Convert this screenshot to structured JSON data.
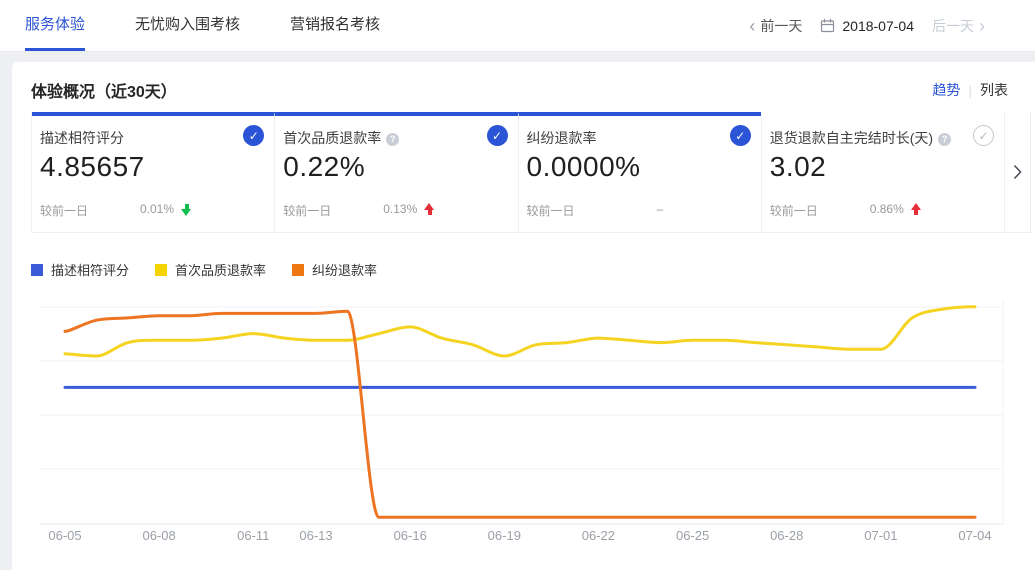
{
  "nav": {
    "tabs": [
      {
        "label": "服务体验",
        "active": true
      },
      {
        "label": "无忧购入围考核",
        "active": false
      },
      {
        "label": "营销报名考核",
        "active": false
      }
    ],
    "date_nav": {
      "prev_label": "前一天",
      "date": "2018-07-04",
      "next_label": "后一天"
    }
  },
  "panel": {
    "title": "体验概况（近30天）",
    "view_switch": {
      "trend": "趋势",
      "divider": "|",
      "list": "列表"
    },
    "cards": [
      {
        "title": "描述相符评分",
        "value": "4.85657",
        "compare_label": "较前一日",
        "change": "0.01%",
        "direction": "down",
        "checked": true
      },
      {
        "title": "首次品质退款率",
        "value": "0.22%",
        "compare_label": "较前一日",
        "change": "0.13%",
        "direction": "up",
        "checked": true
      },
      {
        "title": "纠纷退款率",
        "value": "0.0000%",
        "compare_label": "较前一日",
        "change": "–",
        "direction": "none",
        "checked": true
      },
      {
        "title": "退货退款自主完结时长(天)",
        "value": "3.02",
        "compare_label": "较前一日",
        "change": "0.86%",
        "direction": "up",
        "checked": false
      }
    ]
  },
  "icons": {
    "check": "✓",
    "info": "?",
    "chevron_left": "‹",
    "chevron_right": "›"
  },
  "colors": {
    "accent_blue": "#2b54d6",
    "line_blue": "#3a5cd8",
    "line_yellow": "#f5d321",
    "line_orange": "#ed7420",
    "up_red": "#e62e38",
    "down_green": "#0fbf4d",
    "disabled_text": "#c6ccd6",
    "muted_text": "#999999"
  },
  "chart_data": {
    "type": "line",
    "title": "",
    "xlabel": "",
    "ylabel": "",
    "grid": "horizontal",
    "legend_position": "top-left",
    "y_unit_note": "no y-axis labels shown; values_pct = line height above x-axis as % of plot height",
    "ylim": [
      0,
      100
    ],
    "x": [
      "06-05",
      "06-06",
      "06-07",
      "06-08",
      "06-09",
      "06-10",
      "06-11",
      "06-12",
      "06-13",
      "06-14",
      "06-15",
      "06-16",
      "06-17",
      "06-18",
      "06-19",
      "06-20",
      "06-21",
      "06-22",
      "06-23",
      "06-24",
      "06-25",
      "06-26",
      "06-27",
      "06-28",
      "06-29",
      "06-30",
      "07-01",
      "07-02",
      "07-03",
      "07-04"
    ],
    "tick_indices": [
      0,
      3,
      6,
      8,
      11,
      14,
      17,
      20,
      23,
      26,
      29
    ],
    "series": [
      {
        "key": "desc-score",
        "name": "描述相符评分",
        "color": "#3a5cd8",
        "values_pct": [
          61,
          61,
          61,
          61,
          61,
          61,
          61,
          61,
          61,
          61,
          61,
          61,
          61,
          61,
          61,
          61,
          61,
          61,
          61,
          61,
          61,
          61,
          61,
          61,
          61,
          61,
          61,
          61,
          61,
          61
        ]
      },
      {
        "key": "first-quality-refund",
        "name": "首次品质退款率",
        "color": "#f5d321",
        "values_pct": [
          76,
          75,
          81,
          82,
          82,
          83,
          85,
          83,
          82,
          82,
          85,
          88,
          83,
          80,
          75,
          80,
          81,
          83,
          82,
          81,
          82,
          82,
          81,
          80,
          79,
          78,
          78,
          92,
          96,
          97
        ]
      },
      {
        "key": "dispute-refund",
        "name": "纠纷退款率",
        "color": "#ed7420",
        "values_pct": [
          86,
          91,
          92,
          93,
          93,
          94,
          94,
          94,
          94,
          95,
          3,
          3,
          3,
          3,
          3,
          3,
          3,
          3,
          3,
          3,
          3,
          3,
          3,
          3,
          3,
          3,
          3,
          3,
          3,
          3
        ]
      }
    ]
  }
}
